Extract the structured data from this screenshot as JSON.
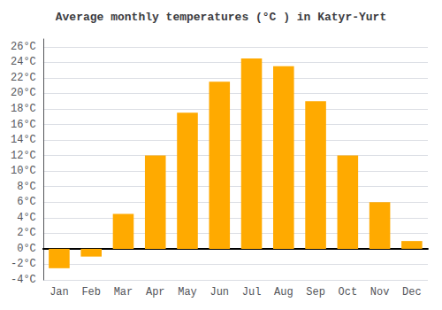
{
  "chart_data": {
    "type": "bar",
    "title": "Average monthly temperatures (°C ) in Katyr-Yurt",
    "categories": [
      "Jan",
      "Feb",
      "Mar",
      "Apr",
      "May",
      "Jun",
      "Jul",
      "Aug",
      "Sep",
      "Oct",
      "Nov",
      "Dec"
    ],
    "values": [
      -2.5,
      -1.0,
      4.5,
      12.0,
      17.5,
      21.5,
      24.5,
      23.5,
      19.0,
      12.0,
      6.0,
      1.0
    ],
    "color": "#FFAA00",
    "ylim": [
      -4,
      27
    ],
    "yticks": [
      {
        "value": -4,
        "label": "-4°C"
      },
      {
        "value": -2,
        "label": "-2°C"
      },
      {
        "value": 0,
        "label": "0°C"
      },
      {
        "value": 2,
        "label": "2°C"
      },
      {
        "value": 4,
        "label": "4°C"
      },
      {
        "value": 6,
        "label": "6°C"
      },
      {
        "value": 8,
        "label": "8°C"
      },
      {
        "value": 10,
        "label": "10°C"
      },
      {
        "value": 12,
        "label": "12°C"
      },
      {
        "value": 14,
        "label": "14°C"
      },
      {
        "value": 16,
        "label": "16°C"
      },
      {
        "value": 18,
        "label": "18°C"
      },
      {
        "value": 20,
        "label": "20°C"
      },
      {
        "value": 22,
        "label": "22°C"
      },
      {
        "value": 24,
        "label": "24°C"
      },
      {
        "value": 26,
        "label": "26°C"
      }
    ],
    "grid": true
  }
}
